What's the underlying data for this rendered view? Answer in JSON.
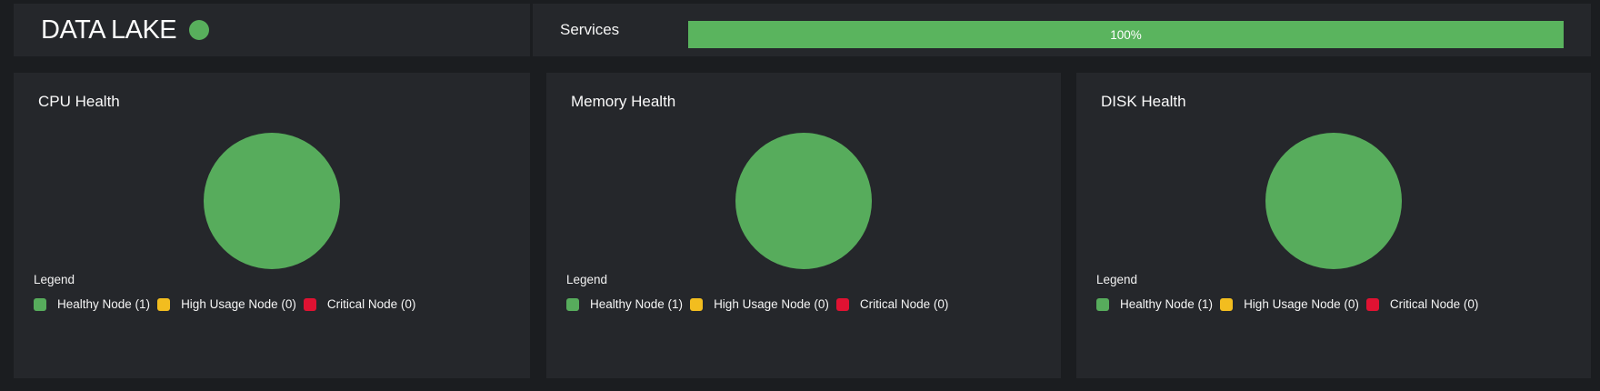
{
  "header": {
    "title": "DATA LAKE",
    "status_dot_color": "#58af5c",
    "services_label": "Services",
    "progress": {
      "label": "100%",
      "percent": 100,
      "color": "#5ab45e"
    }
  },
  "panels": [
    {
      "title": "CPU Health",
      "legend_title": "Legend",
      "pie_color": "#57ac5c",
      "items": [
        {
          "label": "Healthy Node (1)",
          "color": "#57ac5c"
        },
        {
          "label": "High Usage Node (0)",
          "color": "#f2bd1f"
        },
        {
          "label": "Critical Node (0)",
          "color": "#e01232"
        }
      ]
    },
    {
      "title": "Memory Health",
      "legend_title": "Legend",
      "pie_color": "#57ac5c",
      "items": [
        {
          "label": "Healthy Node (1)",
          "color": "#57ac5c"
        },
        {
          "label": "High Usage Node (0)",
          "color": "#f2bd1f"
        },
        {
          "label": "Critical Node (0)",
          "color": "#e01232"
        }
      ]
    },
    {
      "title": "DISK Health",
      "legend_title": "Legend",
      "pie_color": "#57ac5c",
      "items": [
        {
          "label": "Healthy Node (1)",
          "color": "#57ac5c"
        },
        {
          "label": "High Usage Node (0)",
          "color": "#f2bd1f"
        },
        {
          "label": "Critical Node (0)",
          "color": "#e01232"
        }
      ]
    }
  ],
  "chart_data": [
    {
      "type": "pie",
      "title": "CPU Health",
      "labels": [
        "Healthy Node",
        "High Usage Node",
        "Critical Node"
      ],
      "values": [
        1,
        0,
        0
      ],
      "colors": [
        "#57ac5c",
        "#f2bd1f",
        "#e01232"
      ],
      "legend_position": "bottom"
    },
    {
      "type": "pie",
      "title": "Memory Health",
      "labels": [
        "Healthy Node",
        "High Usage Node",
        "Critical Node"
      ],
      "values": [
        1,
        0,
        0
      ],
      "colors": [
        "#57ac5c",
        "#f2bd1f",
        "#e01232"
      ],
      "legend_position": "bottom"
    },
    {
      "type": "pie",
      "title": "DISK Health",
      "labels": [
        "Healthy Node",
        "High Usage Node",
        "Critical Node"
      ],
      "values": [
        1,
        0,
        0
      ],
      "colors": [
        "#57ac5c",
        "#f2bd1f",
        "#e01232"
      ],
      "legend_position": "bottom"
    }
  ]
}
